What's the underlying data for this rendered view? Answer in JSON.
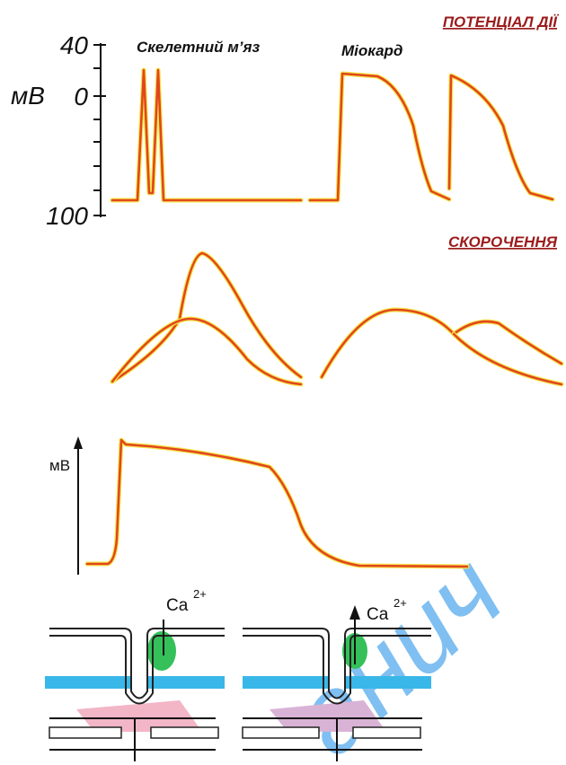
{
  "header": {
    "title": "ПОТЕНЦІАЛ ДІЇ"
  },
  "top_panel": {
    "labels": [
      "Скелетний м’яз",
      "Міокард"
    ],
    "axis": {
      "unit": "мВ",
      "ticks": [
        "40",
        "0",
        "100"
      ]
    }
  },
  "contraction_panel": {
    "title": "СКОРОЧЕННЯ"
  },
  "ap_panel": {
    "axis_label": "мВ"
  },
  "ion_diagrams": [
    {
      "ion": "Ca",
      "charge": "2+"
    },
    {
      "ion": "Ca",
      "charge": "2+"
    }
  ],
  "watermark": "анич"
}
